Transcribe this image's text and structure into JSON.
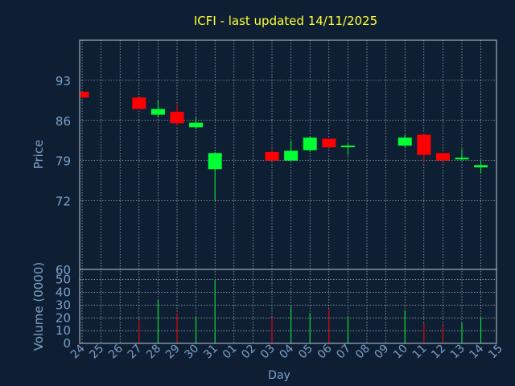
{
  "chart_data": {
    "type": "candlestick",
    "title": "ICFI - last updated 14/11/2025",
    "xlabel": "Day",
    "ylabel_price": "Price",
    "ylabel_volume": "Volume (0000)",
    "price_ylim": [
      60,
      100
    ],
    "price_ticks": [
      "93",
      "86",
      "79",
      "72",
      "60"
    ],
    "price_tick_values": [
      93,
      86,
      79,
      72,
      60
    ],
    "volume_ylim": [
      0,
      58
    ],
    "volume_ticks": [
      "50",
      "40",
      "30",
      "20",
      "10",
      "0"
    ],
    "volume_tick_values": [
      50,
      40,
      30,
      20,
      10,
      0
    ],
    "grid": true,
    "x_labels": [
      "24",
      "25",
      "26",
      "27",
      "28",
      "29",
      "30",
      "31",
      "01",
      "02",
      "03",
      "04",
      "05",
      "06",
      "07",
      "08",
      "09",
      "10",
      "11",
      "12",
      "13",
      "14",
      "15"
    ],
    "candles": [
      {
        "day": "24",
        "open": 91.0,
        "high": 91.0,
        "low": 90.0,
        "close": 90.0,
        "volume": 0
      },
      {
        "day": "27",
        "open": 90.0,
        "high": 90.0,
        "low": 88.0,
        "close": 88.0,
        "volume": 18
      },
      {
        "day": "28",
        "open": 87.0,
        "high": 89.5,
        "low": 86.5,
        "close": 88.0,
        "volume": 34
      },
      {
        "day": "29",
        "open": 87.5,
        "high": 88.8,
        "low": 85.0,
        "close": 85.5,
        "volume": 24
      },
      {
        "day": "30",
        "open": 84.8,
        "high": 86.5,
        "low": 84.5,
        "close": 85.6,
        "volume": 21
      },
      {
        "day": "31",
        "open": 77.5,
        "high": 80.5,
        "low": 72.0,
        "close": 80.3,
        "volume": 50
      },
      {
        "day": "03",
        "open": 80.5,
        "high": 81.0,
        "low": 79.0,
        "close": 79.0,
        "volume": 20
      },
      {
        "day": "04",
        "open": 79.0,
        "high": 82.5,
        "low": 79.0,
        "close": 80.7,
        "volume": 29
      },
      {
        "day": "05",
        "open": 80.8,
        "high": 83.3,
        "low": 80.5,
        "close": 83.0,
        "volume": 24
      },
      {
        "day": "06",
        "open": 82.8,
        "high": 82.8,
        "low": 81.2,
        "close": 81.3,
        "volume": 27
      },
      {
        "day": "07",
        "open": 81.4,
        "high": 82.0,
        "low": 80.0,
        "close": 81.6,
        "volume": 21
      },
      {
        "day": "10",
        "open": 81.6,
        "high": 83.5,
        "low": 81.3,
        "close": 83.0,
        "volume": 26
      },
      {
        "day": "11",
        "open": 83.5,
        "high": 83.8,
        "low": 78.8,
        "close": 80.0,
        "volume": 16
      },
      {
        "day": "12",
        "open": 80.3,
        "high": 80.3,
        "low": 79.0,
        "close": 79.0,
        "volume": 14
      },
      {
        "day": "13",
        "open": 79.2,
        "high": 81.0,
        "low": 79.0,
        "close": 79.5,
        "volume": 16
      },
      {
        "day": "14",
        "open": 77.8,
        "high": 79.0,
        "low": 76.8,
        "close": 78.2,
        "volume": 20
      }
    ]
  },
  "colors": {
    "background": "#0f1f33",
    "title": "#ffff33",
    "axis_text": "#7aa0c8",
    "axis_line": "#b8c8d8",
    "grid": "#c8d4e0",
    "up": "#00ff33",
    "down": "#ff0000"
  }
}
